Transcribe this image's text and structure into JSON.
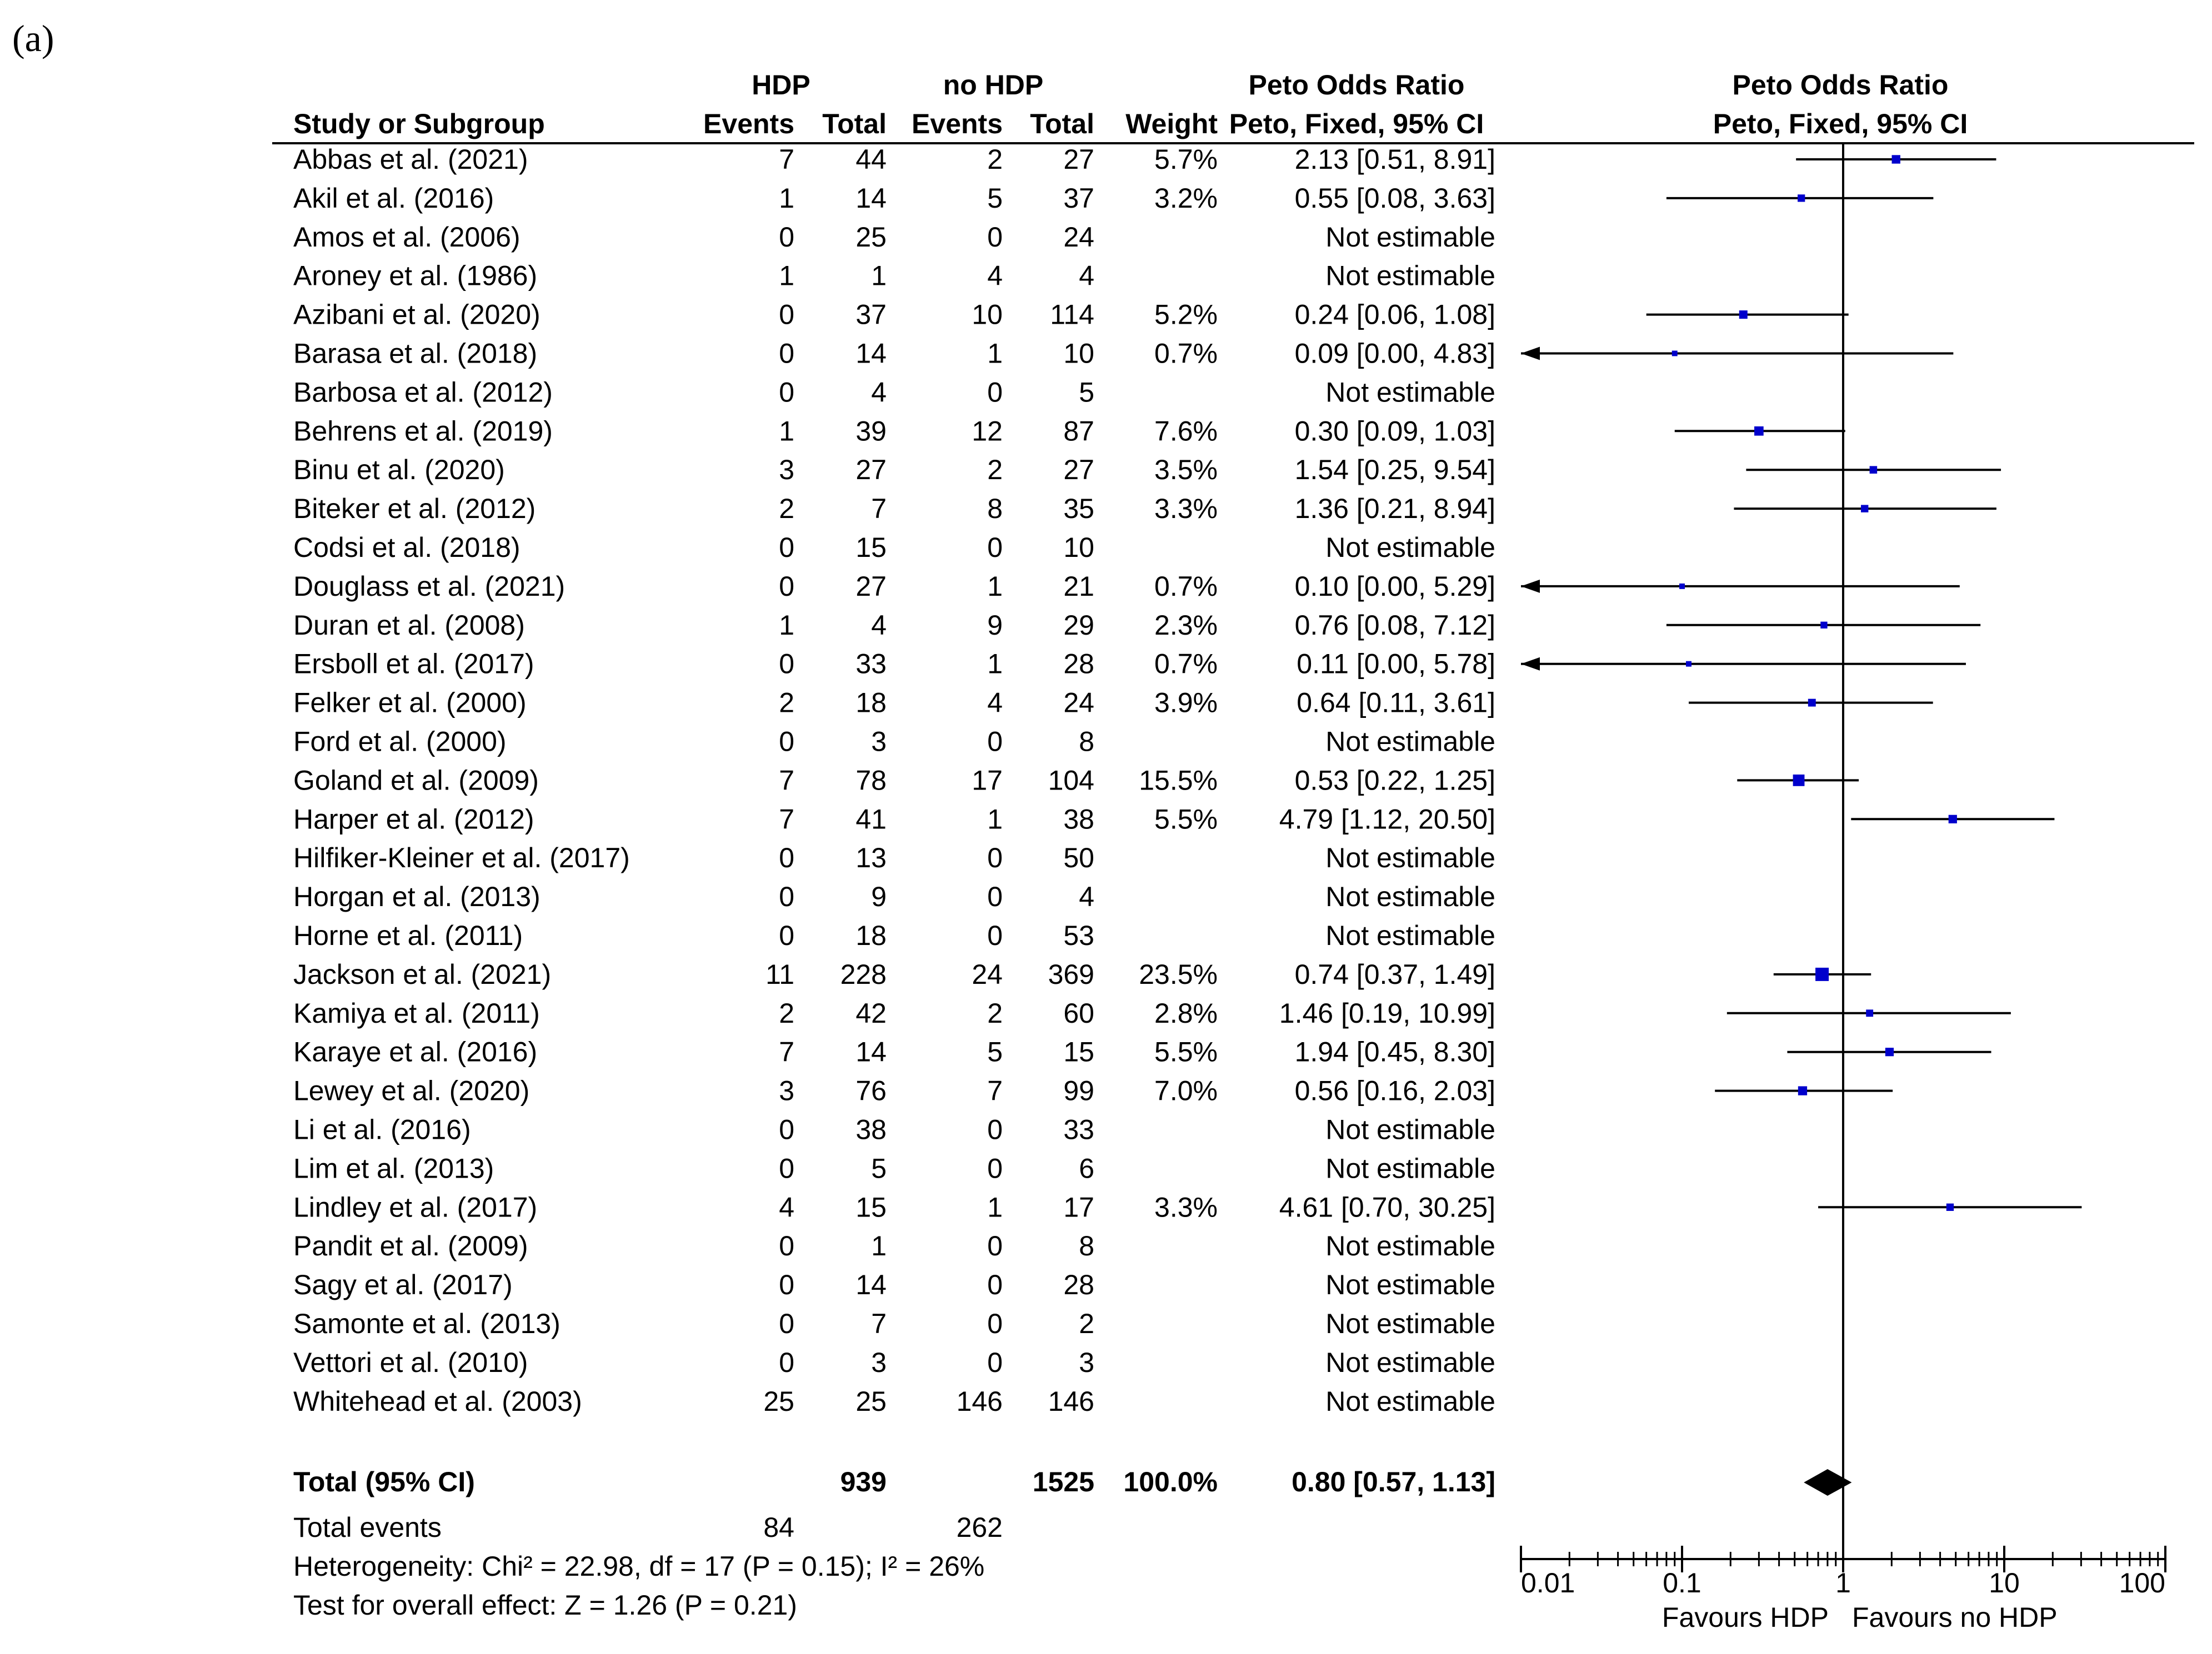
{
  "panel_label": "(a)",
  "header": {
    "group1": "HDP",
    "group2": "no HDP",
    "or_title": "Peto Odds Ratio",
    "or_method": "Peto, Fixed, 95% CI",
    "plot_title": "Peto Odds Ratio",
    "plot_method": "Peto, Fixed, 95% CI",
    "study_col": "Study or Subgroup",
    "events": "Events",
    "total": "Total",
    "weight": "Weight"
  },
  "chart_data": {
    "type": "forest",
    "title": "Peto Odds Ratio",
    "x_scale": "log",
    "x_ticks": [
      "0.01",
      "0.1",
      "1",
      "10",
      "100"
    ],
    "x_range": [
      0.01,
      100
    ],
    "xlabel_left": "Favours HDP",
    "xlabel_right": "Favours no HDP",
    "studies": [
      {
        "name": "Abbas et al. (2021)",
        "e1": "7",
        "n1": "44",
        "e2": "2",
        "n2": "27",
        "weight": "5.7%",
        "ci_text": "2.13 [0.51, 8.91]",
        "or": 2.13,
        "lo": 0.51,
        "hi": 8.91
      },
      {
        "name": "Akil et al. (2016)",
        "e1": "1",
        "n1": "14",
        "e2": "5",
        "n2": "37",
        "weight": "3.2%",
        "ci_text": "0.55 [0.08, 3.63]",
        "or": 0.55,
        "lo": 0.08,
        "hi": 3.63
      },
      {
        "name": "Amos et al. (2006)",
        "e1": "0",
        "n1": "25",
        "e2": "0",
        "n2": "24",
        "weight": "",
        "ci_text": "Not estimable",
        "or": null,
        "lo": null,
        "hi": null
      },
      {
        "name": "Aroney et al. (1986)",
        "e1": "1",
        "n1": "1",
        "e2": "4",
        "n2": "4",
        "weight": "",
        "ci_text": "Not estimable",
        "or": null,
        "lo": null,
        "hi": null
      },
      {
        "name": "Azibani et al. (2020)",
        "e1": "0",
        "n1": "37",
        "e2": "10",
        "n2": "114",
        "weight": "5.2%",
        "ci_text": "0.24 [0.06, 1.08]",
        "or": 0.24,
        "lo": 0.06,
        "hi": 1.08
      },
      {
        "name": "Barasa et al. (2018)",
        "e1": "0",
        "n1": "14",
        "e2": "1",
        "n2": "10",
        "weight": "0.7%",
        "ci_text": "0.09 [0.00, 4.83]",
        "or": 0.09,
        "lo": 0.0,
        "hi": 4.83
      },
      {
        "name": "Barbosa et al. (2012)",
        "e1": "0",
        "n1": "4",
        "e2": "0",
        "n2": "5",
        "weight": "",
        "ci_text": "Not estimable",
        "or": null,
        "lo": null,
        "hi": null
      },
      {
        "name": "Behrens et al. (2019)",
        "e1": "1",
        "n1": "39",
        "e2": "12",
        "n2": "87",
        "weight": "7.6%",
        "ci_text": "0.30 [0.09, 1.03]",
        "or": 0.3,
        "lo": 0.09,
        "hi": 1.03
      },
      {
        "name": "Binu et al. (2020)",
        "e1": "3",
        "n1": "27",
        "e2": "2",
        "n2": "27",
        "weight": "3.5%",
        "ci_text": "1.54 [0.25, 9.54]",
        "or": 1.54,
        "lo": 0.25,
        "hi": 9.54
      },
      {
        "name": "Biteker et al. (2012)",
        "e1": "2",
        "n1": "7",
        "e2": "8",
        "n2": "35",
        "weight": "3.3%",
        "ci_text": "1.36 [0.21, 8.94]",
        "or": 1.36,
        "lo": 0.21,
        "hi": 8.94
      },
      {
        "name": "Codsi et al. (2018)",
        "e1": "0",
        "n1": "15",
        "e2": "0",
        "n2": "10",
        "weight": "",
        "ci_text": "Not estimable",
        "or": null,
        "lo": null,
        "hi": null
      },
      {
        "name": "Douglass et al. (2021)",
        "e1": "0",
        "n1": "27",
        "e2": "1",
        "n2": "21",
        "weight": "0.7%",
        "ci_text": "0.10 [0.00, 5.29]",
        "or": 0.1,
        "lo": 0.0,
        "hi": 5.29
      },
      {
        "name": "Duran et al. (2008)",
        "e1": "1",
        "n1": "4",
        "e2": "9",
        "n2": "29",
        "weight": "2.3%",
        "ci_text": "0.76 [0.08, 7.12]",
        "or": 0.76,
        "lo": 0.08,
        "hi": 7.12
      },
      {
        "name": "Ersboll et al. (2017)",
        "e1": "0",
        "n1": "33",
        "e2": "1",
        "n2": "28",
        "weight": "0.7%",
        "ci_text": "0.11 [0.00, 5.78]",
        "or": 0.11,
        "lo": 0.0,
        "hi": 5.78
      },
      {
        "name": "Felker et al. (2000)",
        "e1": "2",
        "n1": "18",
        "e2": "4",
        "n2": "24",
        "weight": "3.9%",
        "ci_text": "0.64 [0.11, 3.61]",
        "or": 0.64,
        "lo": 0.11,
        "hi": 3.61
      },
      {
        "name": "Ford et al. (2000)",
        "e1": "0",
        "n1": "3",
        "e2": "0",
        "n2": "8",
        "weight": "",
        "ci_text": "Not estimable",
        "or": null,
        "lo": null,
        "hi": null
      },
      {
        "name": "Goland et al. (2009)",
        "e1": "7",
        "n1": "78",
        "e2": "17",
        "n2": "104",
        "weight": "15.5%",
        "ci_text": "0.53 [0.22, 1.25]",
        "or": 0.53,
        "lo": 0.22,
        "hi": 1.25
      },
      {
        "name": "Harper et al. (2012)",
        "e1": "7",
        "n1": "41",
        "e2": "1",
        "n2": "38",
        "weight": "5.5%",
        "ci_text": "4.79 [1.12, 20.50]",
        "or": 4.79,
        "lo": 1.12,
        "hi": 20.5
      },
      {
        "name": "Hilfiker-Kleiner et al. (2017)",
        "e1": "0",
        "n1": "13",
        "e2": "0",
        "n2": "50",
        "weight": "",
        "ci_text": "Not estimable",
        "or": null,
        "lo": null,
        "hi": null
      },
      {
        "name": "Horgan et al. (2013)",
        "e1": "0",
        "n1": "9",
        "e2": "0",
        "n2": "4",
        "weight": "",
        "ci_text": "Not estimable",
        "or": null,
        "lo": null,
        "hi": null
      },
      {
        "name": "Horne et al. (2011)",
        "e1": "0",
        "n1": "18",
        "e2": "0",
        "n2": "53",
        "weight": "",
        "ci_text": "Not estimable",
        "or": null,
        "lo": null,
        "hi": null
      },
      {
        "name": "Jackson et al. (2021)",
        "e1": "11",
        "n1": "228",
        "e2": "24",
        "n2": "369",
        "weight": "23.5%",
        "ci_text": "0.74 [0.37, 1.49]",
        "or": 0.74,
        "lo": 0.37,
        "hi": 1.49
      },
      {
        "name": "Kamiya et al. (2011)",
        "e1": "2",
        "n1": "42",
        "e2": "2",
        "n2": "60",
        "weight": "2.8%",
        "ci_text": "1.46 [0.19, 10.99]",
        "or": 1.46,
        "lo": 0.19,
        "hi": 10.99
      },
      {
        "name": "Karaye et al. (2016)",
        "e1": "7",
        "n1": "14",
        "e2": "5",
        "n2": "15",
        "weight": "5.5%",
        "ci_text": "1.94 [0.45, 8.30]",
        "or": 1.94,
        "lo": 0.45,
        "hi": 8.3
      },
      {
        "name": "Lewey et al. (2020)",
        "e1": "3",
        "n1": "76",
        "e2": "7",
        "n2": "99",
        "weight": "7.0%",
        "ci_text": "0.56 [0.16, 2.03]",
        "or": 0.56,
        "lo": 0.16,
        "hi": 2.03
      },
      {
        "name": "Li et al. (2016)",
        "e1": "0",
        "n1": "38",
        "e2": "0",
        "n2": "33",
        "weight": "",
        "ci_text": "Not estimable",
        "or": null,
        "lo": null,
        "hi": null
      },
      {
        "name": "Lim et al. (2013)",
        "e1": "0",
        "n1": "5",
        "e2": "0",
        "n2": "6",
        "weight": "",
        "ci_text": "Not estimable",
        "or": null,
        "lo": null,
        "hi": null
      },
      {
        "name": "Lindley et al. (2017)",
        "e1": "4",
        "n1": "15",
        "e2": "1",
        "n2": "17",
        "weight": "3.3%",
        "ci_text": "4.61 [0.70, 30.25]",
        "or": 4.61,
        "lo": 0.7,
        "hi": 30.25
      },
      {
        "name": "Pandit et al. (2009)",
        "e1": "0",
        "n1": "1",
        "e2": "0",
        "n2": "8",
        "weight": "",
        "ci_text": "Not estimable",
        "or": null,
        "lo": null,
        "hi": null
      },
      {
        "name": "Sagy et al. (2017)",
        "e1": "0",
        "n1": "14",
        "e2": "0",
        "n2": "28",
        "weight": "",
        "ci_text": "Not estimable",
        "or": null,
        "lo": null,
        "hi": null
      },
      {
        "name": "Samonte et al. (2013)",
        "e1": "0",
        "n1": "7",
        "e2": "0",
        "n2": "2",
        "weight": "",
        "ci_text": "Not estimable",
        "or": null,
        "lo": null,
        "hi": null
      },
      {
        "name": "Vettori et al. (2010)",
        "e1": "0",
        "n1": "3",
        "e2": "0",
        "n2": "3",
        "weight": "",
        "ci_text": "Not estimable",
        "or": null,
        "lo": null,
        "hi": null
      },
      {
        "name": "Whitehead et al. (2003)",
        "e1": "25",
        "n1": "25",
        "e2": "146",
        "n2": "146",
        "weight": "",
        "ci_text": "Not estimable",
        "or": null,
        "lo": null,
        "hi": null
      }
    ],
    "total": {
      "label": "Total (95% CI)",
      "n1": "939",
      "n2": "1525",
      "weight": "100.0%",
      "ci_text": "0.80 [0.57, 1.13]",
      "or": 0.8,
      "lo": 0.57,
      "hi": 1.13
    },
    "total_events": {
      "label": "Total events",
      "e1": "84",
      "e2": "262"
    },
    "heterogeneity": "Heterogeneity: Chi² = 22.98, df = 17 (P = 0.15); I² = 26%",
    "overall_effect": "Test for overall effect: Z = 1.26 (P = 0.21)",
    "colors": {
      "marker": "#0000cc",
      "line": "#000000",
      "diamond": "#000000"
    }
  }
}
